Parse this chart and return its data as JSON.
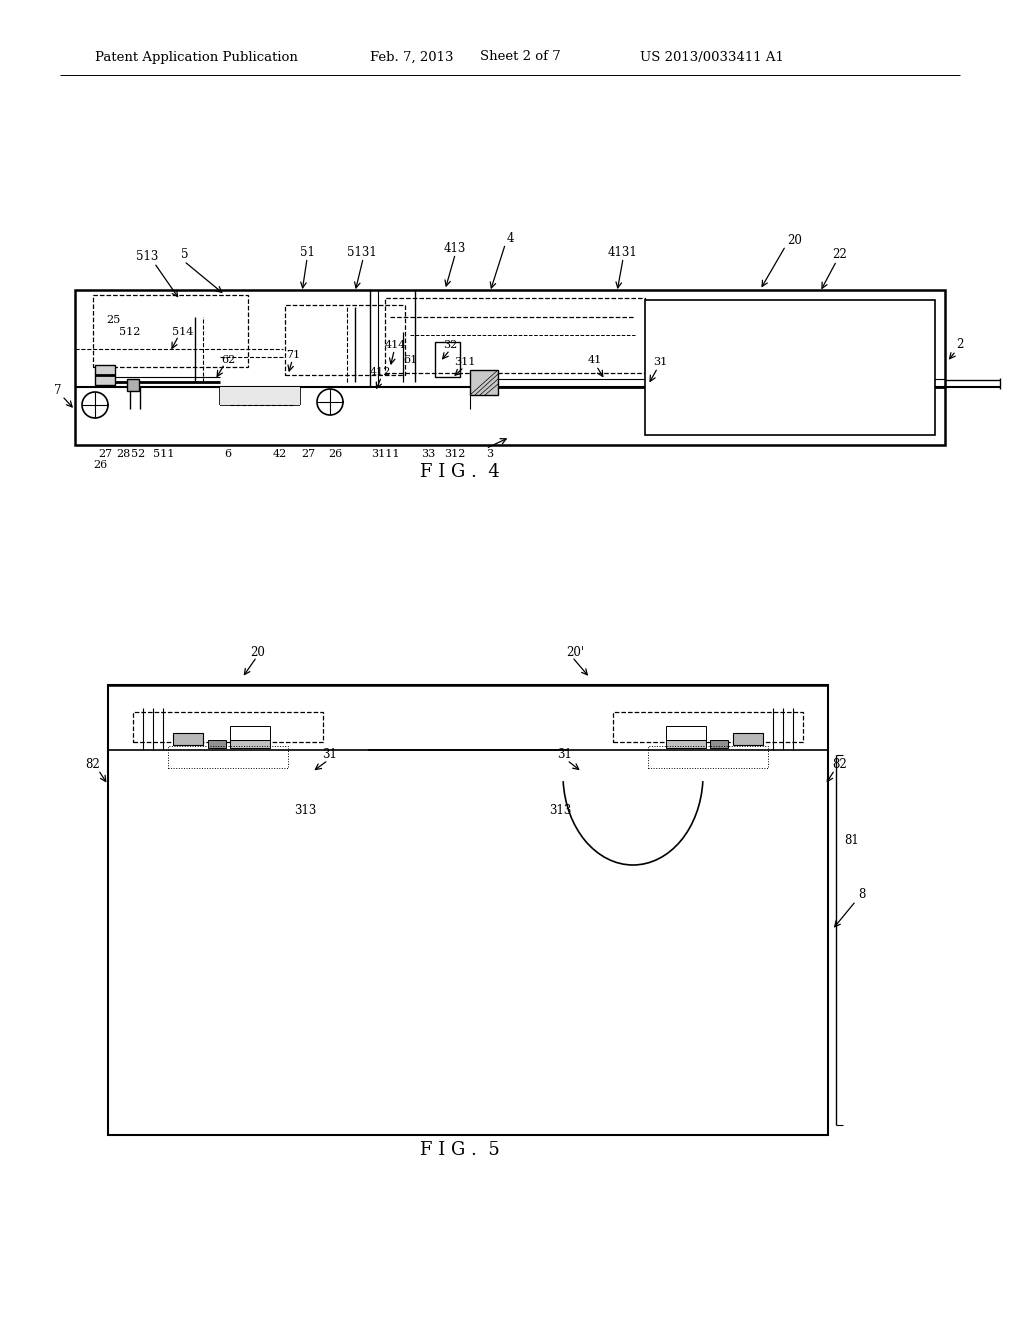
{
  "bg_color": "#ffffff",
  "line_color": "#000000",
  "header_text": "Patent Application Publication",
  "header_date": "Feb. 7, 2013",
  "header_sheet": "Sheet 2 of 7",
  "header_patent": "US 2013/0033411 A1",
  "fig4_label": "F I G .  4",
  "fig5_label": "F I G .  5"
}
